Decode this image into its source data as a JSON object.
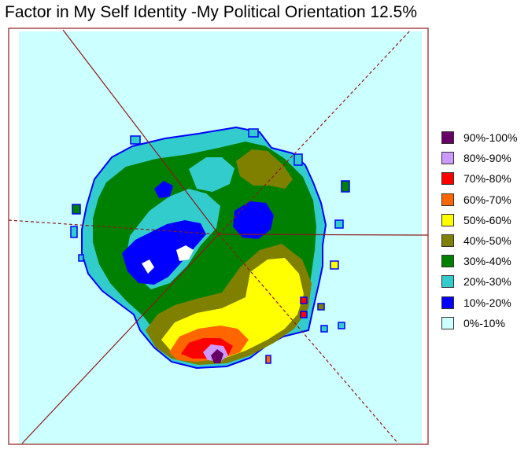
{
  "chart_data": {
    "type": "heatmap",
    "title": "Factor in My Self Identity -My Political Orientation 12.5%",
    "legend_position": "right",
    "legend": [
      {
        "label": "90%-100%",
        "color": "#660066"
      },
      {
        "label": "80%-90%",
        "color": "#CC99FF"
      },
      {
        "label": "70%-80%",
        "color": "#FF0000"
      },
      {
        "label": "60%-70%",
        "color": "#FF6600"
      },
      {
        "label": "50%-60%",
        "color": "#FFFF00"
      },
      {
        "label": "40%-50%",
        "color": "#808000"
      },
      {
        "label": "30%-40%",
        "color": "#008000"
      },
      {
        "label": "20%-30%",
        "color": "#33CCCC"
      },
      {
        "label": "10%-20%",
        "color": "#0000FF"
      },
      {
        "label": "0%-10%",
        "color": "#CCFFFF"
      }
    ]
  }
}
